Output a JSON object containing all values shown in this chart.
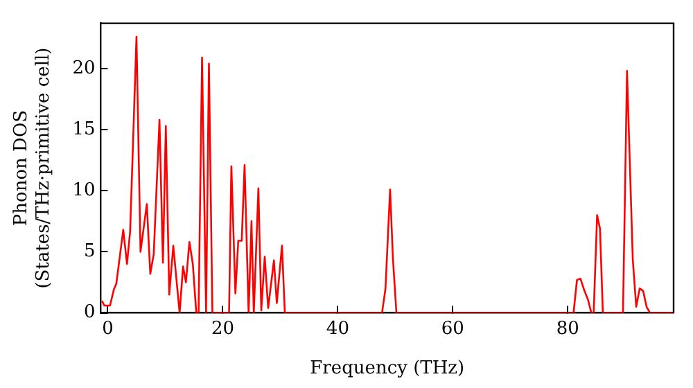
{
  "chart_data": {
    "type": "line",
    "xlabel": "Frequency (THz)",
    "ylabel": "Phonon DOS\n(States/THz·primitive cell)",
    "xlim": [
      -1.2,
      98.4
    ],
    "ylim": [
      0,
      23.7
    ],
    "xticks": [
      0,
      20,
      40,
      60,
      80
    ],
    "yticks": [
      0,
      5,
      10,
      15,
      20
    ],
    "grid": false,
    "legend": false,
    "marker": "none",
    "line_style": "solid",
    "series": [
      {
        "color": "#ff0000",
        "x": [
          -1.0,
          -0.6,
          0.4,
          1.06,
          1.5,
          2.7,
          3.35,
          3.9,
          5.0,
          5.7,
          6.8,
          7.4,
          8.0,
          9.0,
          9.6,
          10.1,
          10.7,
          11.4,
          12.5,
          13.1,
          13.6,
          14.2,
          14.8,
          15.4,
          15.8,
          16.4,
          17.1,
          17.6,
          18.2,
          21.1,
          21.5,
          22.2,
          22.7,
          23.3,
          23.8,
          24.5,
          25.0,
          25.4,
          26.2,
          26.7,
          27.3,
          27.9,
          28.9,
          29.4,
          30.3,
          30.8,
          47.7,
          48.3,
          49.1,
          49.6,
          50.2,
          81.0,
          81.6,
          82.2,
          82.9,
          83.5,
          84.1,
          84.5,
          85.1,
          85.6,
          86.1,
          89.6,
          90.3,
          91.3,
          91.9,
          92.5,
          93.1,
          93.7,
          94.3,
          98.4
        ],
        "values": [
          1.0,
          0.6,
          0.6,
          1.9,
          2.4,
          6.8,
          4.0,
          6.7,
          22.6,
          5.0,
          8.9,
          3.2,
          4.8,
          15.8,
          4.1,
          15.3,
          1.5,
          5.5,
          0,
          3.8,
          2.5,
          5.8,
          4.0,
          0,
          0,
          20.9,
          0,
          20.4,
          0,
          0,
          12.0,
          1.6,
          5.9,
          5.9,
          12.1,
          0,
          7.5,
          0,
          10.2,
          0.2,
          4.6,
          0.4,
          4.3,
          0.8,
          5.5,
          0,
          0,
          2.0,
          10.1,
          4.4,
          0,
          0,
          2.7,
          2.8,
          1.8,
          1.1,
          0,
          0,
          8.0,
          6.9,
          0,
          0,
          19.8,
          4.4,
          0.5,
          2.0,
          1.8,
          0.5,
          0,
          0
        ]
      }
    ]
  }
}
